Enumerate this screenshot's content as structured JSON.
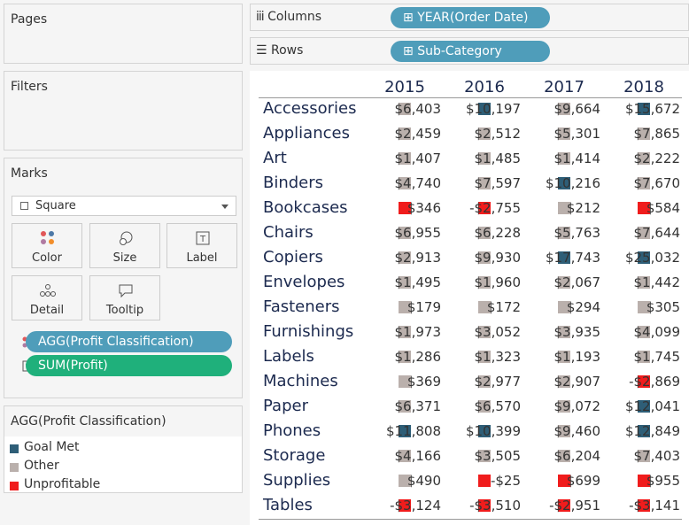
{
  "panels": {
    "pages": "Pages",
    "filters": "Filters",
    "marks": "Marks"
  },
  "marks_card": {
    "mark_type": "Square",
    "buttons": [
      "Color",
      "Size",
      "Label",
      "Detail",
      "Tooltip"
    ],
    "fields": [
      {
        "label": "AGG(Profit Classification)",
        "color": "#4f9dba"
      },
      {
        "label": "SUM(Profit)",
        "color": "#1fb07b"
      }
    ]
  },
  "legend": {
    "title": "AGG(Profit Classification)",
    "items": [
      {
        "label": "Goal Met",
        "color": "#2e5e77"
      },
      {
        "label": "Other",
        "color": "#bab0ac"
      },
      {
        "label": "Unprofitable",
        "color": "#f01c1c"
      }
    ]
  },
  "shelves": {
    "columns": {
      "label": "Columns",
      "pill": "YEAR(Order Date)"
    },
    "rows": {
      "label": "Rows",
      "pill": "Sub-Category"
    }
  },
  "table": {
    "columns": [
      "2015",
      "2016",
      "2017",
      "2018"
    ],
    "rows": [
      {
        "label": "Accessories",
        "cells": [
          "$6,403",
          "$10,197",
          "$9,664",
          "$15,672"
        ],
        "classes": [
          1,
          0,
          1,
          0
        ]
      },
      {
        "label": "Appliances",
        "cells": [
          "$2,459",
          "$2,512",
          "$5,301",
          "$7,865"
        ],
        "classes": [
          1,
          1,
          1,
          1
        ]
      },
      {
        "label": "Art",
        "cells": [
          "$1,407",
          "$1,485",
          "$1,414",
          "$2,222"
        ],
        "classes": [
          1,
          1,
          1,
          1
        ]
      },
      {
        "label": "Binders",
        "cells": [
          "$4,740",
          "$7,597",
          "$10,216",
          "$7,670"
        ],
        "classes": [
          1,
          1,
          0,
          1
        ]
      },
      {
        "label": "Bookcases",
        "cells": [
          "$346",
          "-$2,755",
          "$212",
          "$584"
        ],
        "classes": [
          2,
          2,
          1,
          2
        ]
      },
      {
        "label": "Chairs",
        "cells": [
          "$6,955",
          "$6,228",
          "$5,763",
          "$7,644"
        ],
        "classes": [
          1,
          1,
          1,
          1
        ]
      },
      {
        "label": "Copiers",
        "cells": [
          "$2,913",
          "$9,930",
          "$17,743",
          "$25,032"
        ],
        "classes": [
          1,
          1,
          0,
          0
        ]
      },
      {
        "label": "Envelopes",
        "cells": [
          "$1,495",
          "$1,960",
          "$2,067",
          "$1,442"
        ],
        "classes": [
          1,
          1,
          1,
          1
        ]
      },
      {
        "label": "Fasteners",
        "cells": [
          "$179",
          "$172",
          "$294",
          "$305"
        ],
        "classes": [
          1,
          1,
          1,
          1
        ]
      },
      {
        "label": "Furnishings",
        "cells": [
          "$1,973",
          "$3,052",
          "$3,935",
          "$4,099"
        ],
        "classes": [
          1,
          1,
          1,
          1
        ]
      },
      {
        "label": "Labels",
        "cells": [
          "$1,286",
          "$1,323",
          "$1,193",
          "$1,745"
        ],
        "classes": [
          1,
          1,
          1,
          1
        ]
      },
      {
        "label": "Machines",
        "cells": [
          "$369",
          "$2,977",
          "$2,907",
          "-$2,869"
        ],
        "classes": [
          1,
          1,
          1,
          2
        ]
      },
      {
        "label": "Paper",
        "cells": [
          "$6,371",
          "$6,570",
          "$9,072",
          "$12,041"
        ],
        "classes": [
          1,
          1,
          1,
          0
        ]
      },
      {
        "label": "Phones",
        "cells": [
          "$11,808",
          "$10,399",
          "$9,460",
          "$12,849"
        ],
        "classes": [
          0,
          0,
          1,
          0
        ]
      },
      {
        "label": "Storage",
        "cells": [
          "$4,166",
          "$3,505",
          "$6,204",
          "$7,403"
        ],
        "classes": [
          1,
          1,
          1,
          1
        ]
      },
      {
        "label": "Supplies",
        "cells": [
          "$490",
          "-$25",
          "$699",
          "$955"
        ],
        "classes": [
          1,
          2,
          2,
          2
        ]
      },
      {
        "label": "Tables",
        "cells": [
          "-$3,124",
          "-$3,510",
          "-$2,951",
          "-$3,141"
        ],
        "classes": [
          2,
          2,
          2,
          2
        ]
      }
    ]
  }
}
